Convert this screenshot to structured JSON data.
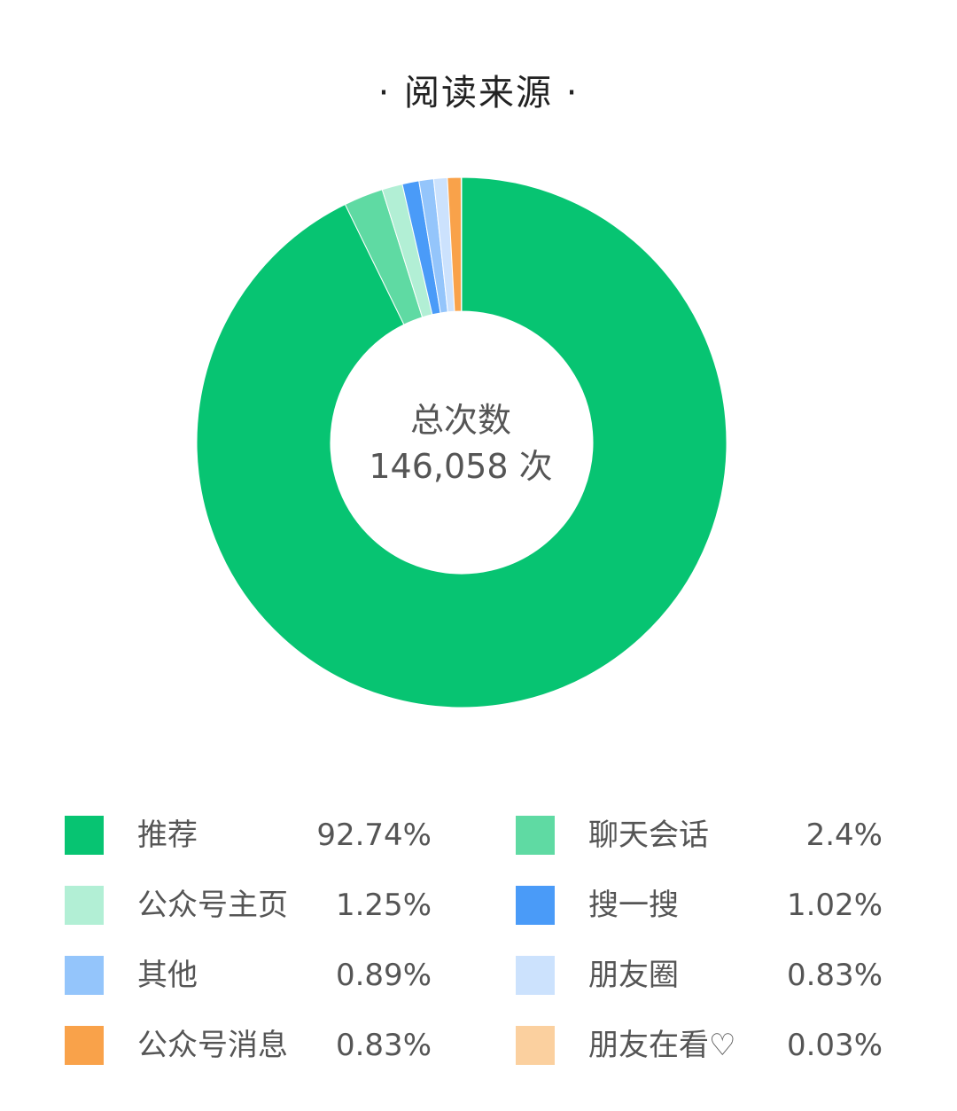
{
  "title": "· 阅读来源 ·",
  "center": {
    "label": "总次数",
    "value": "146,058 次"
  },
  "chart_data": {
    "type": "pie",
    "title": "阅读来源",
    "total": 146058,
    "categories": [
      "推荐",
      "聊天会话",
      "公众号主页",
      "搜一搜",
      "其他",
      "朋友圈",
      "公众号消息",
      "朋友在看♡"
    ],
    "values": [
      92.74,
      2.4,
      1.25,
      1.02,
      0.89,
      0.83,
      0.83,
      0.03
    ],
    "value_labels": [
      "92.74%",
      "2.4%",
      "1.25%",
      "1.02%",
      "0.89%",
      "0.83%",
      "0.83%",
      "0.03%"
    ],
    "colors": [
      "#07C472",
      "#5FDAA3",
      "#B2EFD5",
      "#4A9BF8",
      "#94C5FB",
      "#CCE2FD",
      "#F9A24A",
      "#FBD09F"
    ],
    "legend_position": "bottom"
  }
}
